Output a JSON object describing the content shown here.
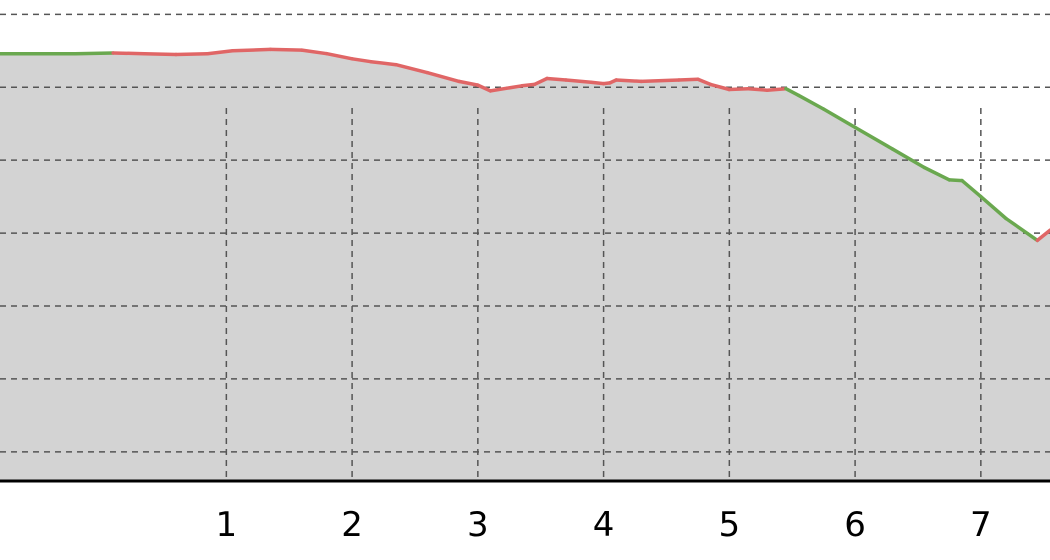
{
  "chart_data": {
    "type": "area",
    "title": "",
    "xlabel": "",
    "ylabel": "",
    "grid": true,
    "xlim": [
      -0.8,
      7.55
    ],
    "ylim": [
      0,
      6.35
    ],
    "x_ticks": [
      1,
      2,
      3,
      4,
      5,
      6,
      7
    ],
    "x_tick_labels": [
      "1",
      "2",
      "3",
      "4",
      "5",
      "6",
      "7"
    ],
    "y_gridlines": [
      0.4,
      1.4,
      2.4,
      3.4,
      4.4,
      5.4,
      6.4
    ],
    "colors": {
      "fill": "#d3d3d3",
      "uphill": "#e06666",
      "downhill": "#6aa84f",
      "grid": "#555555",
      "axis": "#000000"
    },
    "series": [
      {
        "x": [
          -0.8,
          -0.45,
          -0.2,
          0.1,
          0.35,
          0.6,
          0.85,
          1.05,
          1.35,
          1.6,
          1.8,
          2.0,
          2.15,
          2.35,
          2.6,
          2.85,
          3.0,
          3.1,
          3.35,
          3.45,
          3.55,
          3.7,
          3.9,
          4.0,
          4.05,
          4.1,
          4.3,
          4.6,
          4.75,
          4.85,
          5.0,
          5.15,
          5.3,
          5.45,
          5.55,
          5.75,
          6.0,
          6.3,
          6.55,
          6.75,
          6.85,
          7.0,
          7.2,
          7.45,
          7.55
        ],
        "y": [
          5.86,
          5.86,
          5.86,
          5.87,
          5.86,
          5.85,
          5.86,
          5.9,
          5.92,
          5.91,
          5.86,
          5.79,
          5.75,
          5.71,
          5.6,
          5.48,
          5.43,
          5.35,
          5.42,
          5.44,
          5.52,
          5.5,
          5.47,
          5.45,
          5.46,
          5.5,
          5.48,
          5.5,
          5.51,
          5.44,
          5.37,
          5.38,
          5.36,
          5.38,
          5.29,
          5.1,
          4.85,
          4.55,
          4.3,
          4.13,
          4.12,
          3.9,
          3.6,
          3.3,
          3.44
        ],
        "grade": [
          "downhill",
          "downhill",
          "downhill",
          "uphill",
          "uphill",
          "uphill",
          "uphill",
          "uphill",
          "uphill",
          "uphill",
          "uphill",
          "uphill",
          "uphill",
          "uphill",
          "uphill",
          "uphill",
          "uphill",
          "uphill",
          "uphill",
          "uphill",
          "uphill",
          "uphill",
          "uphill",
          "uphill",
          "uphill",
          "uphill",
          "uphill",
          "uphill",
          "uphill",
          "uphill",
          "uphill",
          "uphill",
          "uphill",
          "downhill",
          "downhill",
          "downhill",
          "downhill",
          "downhill",
          "downhill",
          "downhill",
          "downhill",
          "downhill",
          "downhill",
          "uphill"
        ]
      }
    ]
  }
}
